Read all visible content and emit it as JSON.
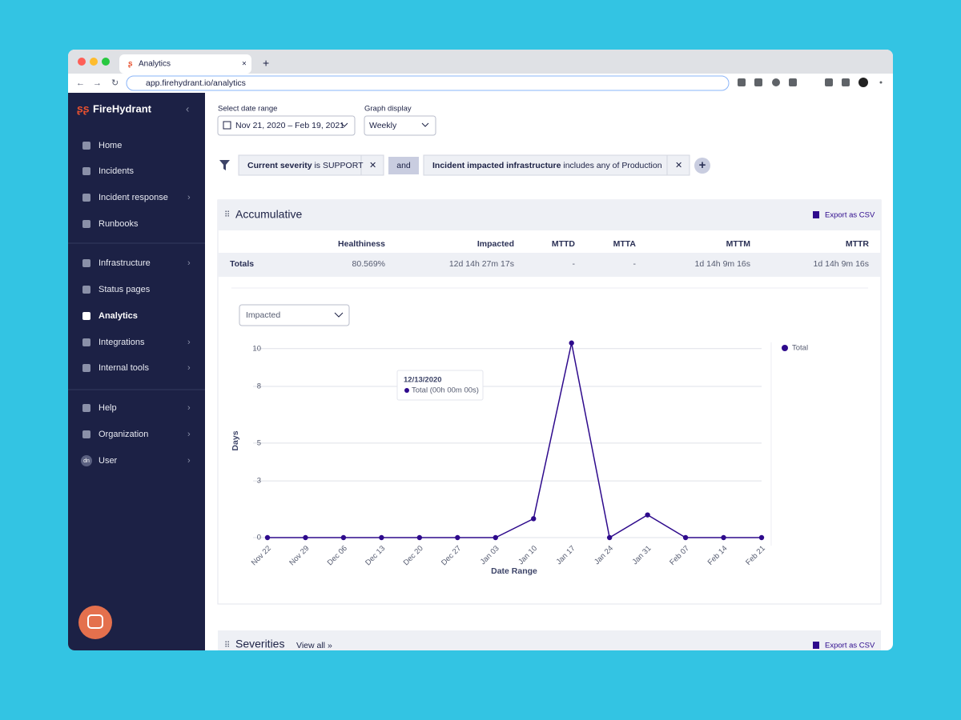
{
  "browser": {
    "tab_title": "Analytics",
    "url": "app.firehydrant.io/analytics"
  },
  "sidebar": {
    "brand": "FireHydrant",
    "items": [
      "Home",
      "Incidents",
      "Incident response",
      "Runbooks",
      "Infrastructure",
      "Status pages",
      "Analytics",
      "Integrations",
      "Internal tools",
      "Help",
      "Organization",
      "User"
    ],
    "avatar": "dn"
  },
  "controls": {
    "date_label": "Select date range",
    "date_value": "Nov 21, 2020 – Feb 19, 2021",
    "display_label": "Graph display",
    "display_value": "Weekly"
  },
  "filters": {
    "chip1": {
      "field": "Current severity",
      "rest": " is SUPPORT"
    },
    "joiner": "and",
    "chip2": {
      "field": "Incident impacted infrastructure",
      "rest": " includes any of Production"
    }
  },
  "accumulative": {
    "title": "Accumulative",
    "export": "Export as CSV",
    "table": {
      "columns": [
        "Healthiness",
        "Impacted",
        "MTTD",
        "MTTA",
        "MTTM",
        "MTTR"
      ],
      "rows": [
        [
          "Totals",
          "80.569%",
          "12d 14h 27m 17s",
          "-",
          "-",
          "1d 14h 9m 16s",
          "1d 14h 9m 16s"
        ]
      ]
    },
    "metric_select": "Impacted"
  },
  "chart_data": {
    "type": "line",
    "xlabel": "Date Range",
    "ylabel": "Days",
    "categories": [
      "Nov 22",
      "Nov 29",
      "Dec 06",
      "Dec 13",
      "Dec 20",
      "Dec 27",
      "Jan 03",
      "Jan 10",
      "Jan 17",
      "Jan 24",
      "Jan 31",
      "Feb 07",
      "Feb 14",
      "Feb 21"
    ],
    "series": [
      {
        "name": "Total",
        "color": "#2e0a8c",
        "values": [
          0,
          0,
          0,
          0,
          0,
          0,
          0,
          1,
          10.3,
          0,
          1.2,
          0,
          0,
          0
        ]
      }
    ],
    "ylim": [
      0,
      10.5
    ],
    "yticks": [
      0,
      3,
      5,
      8,
      10
    ],
    "grid": true,
    "legend": "right",
    "tooltip": {
      "title": "12/13/2020",
      "text": "Total (00h 00m 00s)"
    }
  },
  "severities": {
    "title": "Severities",
    "view_all": "View all",
    "export": "Export as CSV"
  }
}
